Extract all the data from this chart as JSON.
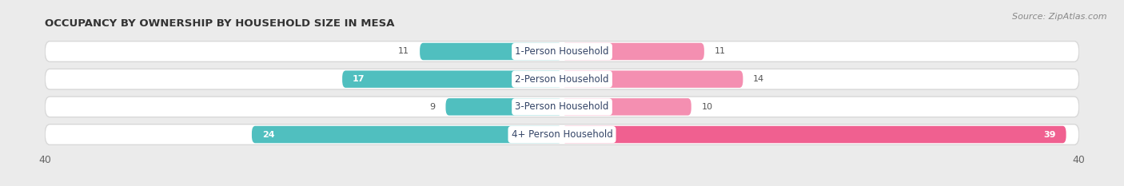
{
  "title": "OCCUPANCY BY OWNERSHIP BY HOUSEHOLD SIZE IN MESA",
  "source": "Source: ZipAtlas.com",
  "categories": [
    "1-Person Household",
    "2-Person Household",
    "3-Person Household",
    "4+ Person Household"
  ],
  "owner_values": [
    11,
    17,
    9,
    24
  ],
  "renter_values": [
    11,
    14,
    10,
    39
  ],
  "max_val": 40,
  "owner_color": "#50BFBF",
  "renter_color": "#F48FB1",
  "renter_color_4p": "#F06090",
  "bg_color": "#EBEBEB",
  "row_bg_color": "#FFFFFF",
  "row_border_color": "#D8D8D8",
  "title_fontsize": 9.5,
  "label_fontsize": 8.5,
  "value_fontsize": 8,
  "tick_fontsize": 9,
  "legend_fontsize": 9,
  "source_fontsize": 8,
  "cat_label_color": "#334466",
  "value_color_outside": "#555555",
  "value_color_inside": "#FFFFFF"
}
